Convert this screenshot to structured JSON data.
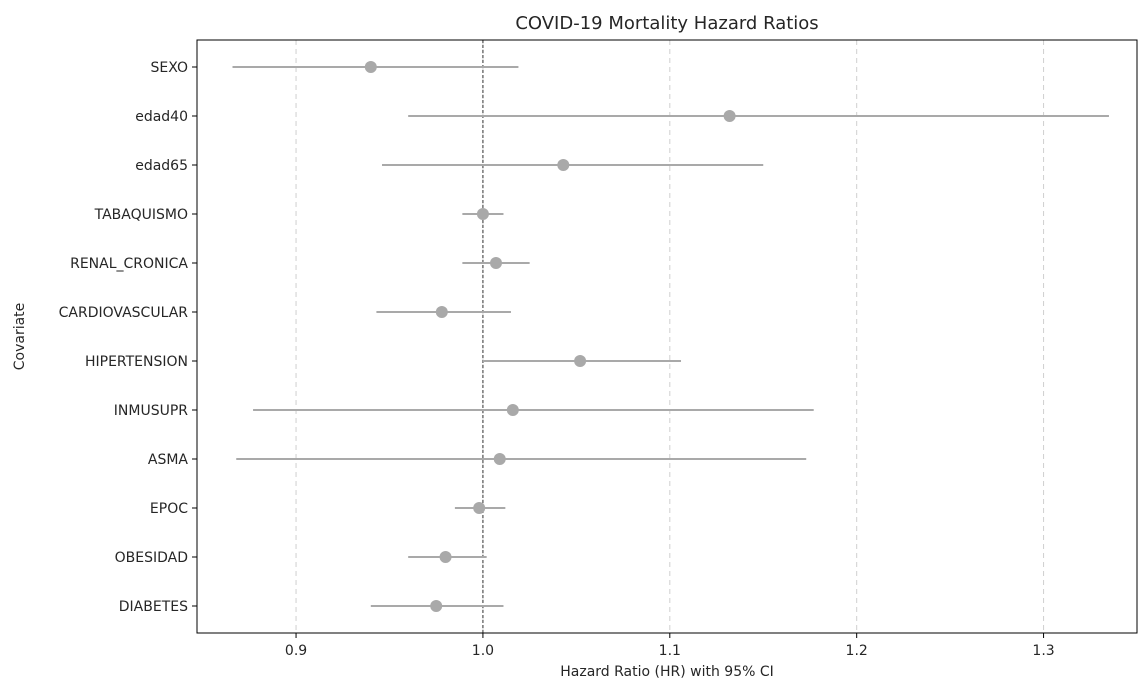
{
  "chart_data": {
    "type": "forest",
    "title": "COVID-19 Mortality Hazard Ratios",
    "xlabel": "Hazard Ratio (HR) with 95% CI",
    "ylabel": "Covariate",
    "xlim": [
      0.847,
      1.35
    ],
    "xticks": [
      0.9,
      1.0,
      1.1,
      1.2,
      1.3
    ],
    "xtick_labels": [
      "0.9",
      "1.0",
      "1.1",
      "1.2",
      "1.3"
    ],
    "reference_line": 1.0,
    "grid": "x-dashed",
    "colors": {
      "marker": "#a9a9a9",
      "ci_line": "#a9a9a9",
      "grid": "#cfcfcf",
      "reference": "#333333"
    },
    "covariates": [
      {
        "name": "SEXO",
        "hr": 0.94,
        "lower": 0.866,
        "upper": 1.019
      },
      {
        "name": "edad40",
        "hr": 1.132,
        "lower": 0.96,
        "upper": 1.335
      },
      {
        "name": "edad65",
        "hr": 1.043,
        "lower": 0.946,
        "upper": 1.15
      },
      {
        "name": "TABAQUISMO",
        "hr": 1.0,
        "lower": 0.989,
        "upper": 1.011
      },
      {
        "name": "RENAL_CRONICA",
        "hr": 1.007,
        "lower": 0.989,
        "upper": 1.025
      },
      {
        "name": "CARDIOVASCULAR",
        "hr": 0.978,
        "lower": 0.943,
        "upper": 1.015
      },
      {
        "name": "HIPERTENSION",
        "hr": 1.052,
        "lower": 1.0,
        "upper": 1.106
      },
      {
        "name": "INMUSUPR",
        "hr": 1.016,
        "lower": 0.877,
        "upper": 1.177
      },
      {
        "name": "ASMA",
        "hr": 1.009,
        "lower": 0.868,
        "upper": 1.173
      },
      {
        "name": "EPOC",
        "hr": 0.998,
        "lower": 0.985,
        "upper": 1.012
      },
      {
        "name": "OBESIDAD",
        "hr": 0.98,
        "lower": 0.96,
        "upper": 1.002
      },
      {
        "name": "DIABETES",
        "hr": 0.975,
        "lower": 0.94,
        "upper": 1.011
      }
    ]
  }
}
